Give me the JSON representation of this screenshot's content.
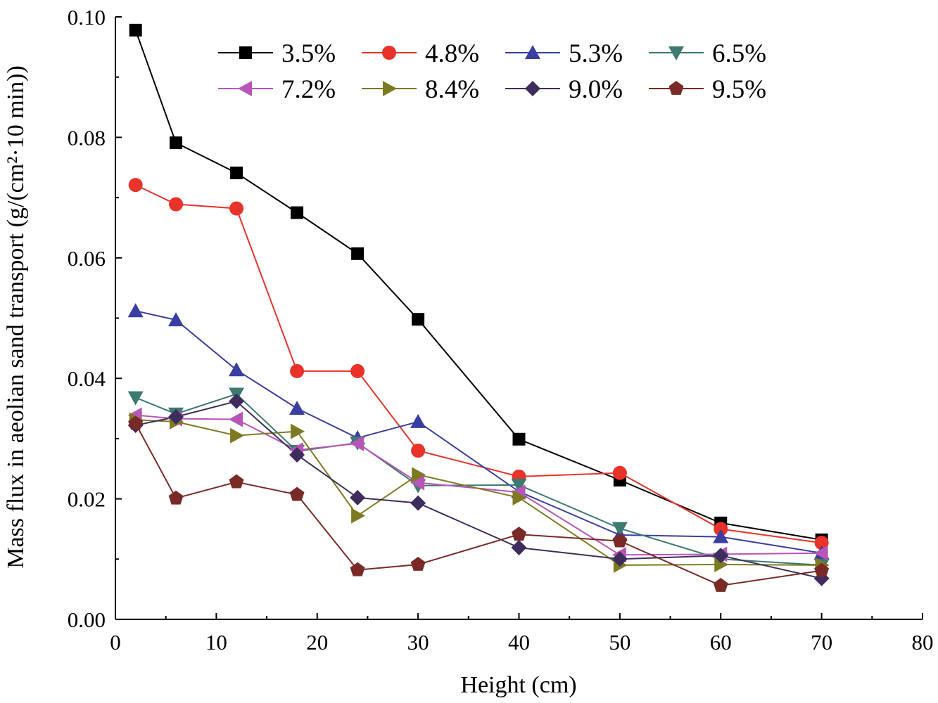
{
  "chart_data": {
    "type": "line",
    "xlabel": "Height (cm)",
    "ylabel": "Mass flux in aeolian sand transport (g/(cm²·10 min))",
    "xlim": [
      0,
      80
    ],
    "ylim": [
      0,
      0.1
    ],
    "x_ticks": [
      "0",
      "10",
      "20",
      "30",
      "40",
      "50",
      "60",
      "70",
      "80"
    ],
    "y_ticks": [
      "0.00",
      "0.02",
      "0.04",
      "0.06",
      "0.08",
      "0.10"
    ],
    "grid": false,
    "legend_position": "top",
    "x": [
      2,
      6,
      12,
      18,
      24,
      30,
      40,
      50,
      60,
      70
    ],
    "series": [
      {
        "name": "3.5%",
        "color": "#000000",
        "marker": "square",
        "values": [
          0.0978,
          0.0791,
          0.0741,
          0.0675,
          0.0607,
          0.0498,
          0.0299,
          0.0231,
          0.016,
          0.0132
        ]
      },
      {
        "name": "4.8%",
        "color": "#e8322a",
        "marker": "circle",
        "values": [
          0.0721,
          0.0689,
          0.0682,
          0.0412,
          0.0412,
          0.028,
          0.0237,
          0.0243,
          0.015,
          0.0127
        ]
      },
      {
        "name": "5.3%",
        "color": "#3a3ea0",
        "marker": "triangle-up",
        "values": [
          0.0512,
          0.0497,
          0.0414,
          0.035,
          0.0301,
          0.0328,
          0.0212,
          0.014,
          0.0137,
          0.011
        ]
      },
      {
        "name": "6.5%",
        "color": "#3d7a70",
        "marker": "triangle-down",
        "values": [
          0.0368,
          0.0341,
          0.0374,
          0.0279,
          0.0293,
          0.0222,
          0.0223,
          0.0151,
          0.01,
          0.009
        ]
      },
      {
        "name": "7.2%",
        "color": "#b855b8",
        "marker": "triangle-left",
        "values": [
          0.0339,
          0.0333,
          0.0332,
          0.0281,
          0.0292,
          0.0227,
          0.0211,
          0.0107,
          0.0108,
          0.011
        ]
      },
      {
        "name": "8.4%",
        "color": "#7e7a22",
        "marker": "triangle-right",
        "values": [
          0.0331,
          0.0328,
          0.0305,
          0.0312,
          0.0172,
          0.024,
          0.0202,
          0.009,
          0.0091,
          0.009
        ]
      },
      {
        "name": "9.0%",
        "color": "#3e2d5c",
        "marker": "diamond",
        "values": [
          0.0322,
          0.0336,
          0.0362,
          0.0273,
          0.0202,
          0.0193,
          0.0119,
          0.01,
          0.0106,
          0.0068
        ]
      },
      {
        "name": "9.5%",
        "color": "#7a2a26",
        "marker": "pentagon",
        "values": [
          0.0325,
          0.0201,
          0.0228,
          0.0207,
          0.0082,
          0.0091,
          0.0141,
          0.013,
          0.0056,
          0.0081
        ]
      }
    ]
  }
}
